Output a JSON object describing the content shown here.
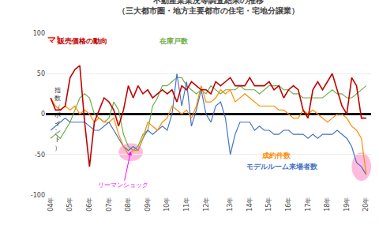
{
  "chart_data": {
    "type": "line",
    "title": "不動産業業況等調査結果の推移",
    "subtitle": "（三大都市圏・地方主要都市の住宅・宅地分譲業）",
    "y_label": "指数（ポイント）",
    "categories": [
      "04年",
      null,
      null,
      null,
      "05年",
      null,
      null,
      null,
      "06年",
      null,
      null,
      null,
      "07年",
      null,
      null,
      null,
      "08年",
      null,
      null,
      null,
      "09年",
      null,
      null,
      null,
      "10年",
      null,
      null,
      null,
      "11年",
      null,
      null,
      null,
      "12年",
      null,
      null,
      null,
      null,
      "13年",
      null,
      null,
      null,
      "14年",
      null,
      null,
      null,
      "15年",
      null,
      null,
      null,
      "16年",
      null,
      null,
      null,
      "17年",
      null,
      null,
      null,
      "18年",
      null,
      null,
      null,
      "19年",
      null,
      null,
      null,
      "20年"
    ],
    "series": [
      {
        "name": "在庫戸数",
        "color": "#70AD47",
        "values": [
          -30,
          -25,
          -30,
          -20,
          -10,
          5,
          20,
          25,
          20,
          0,
          -5,
          -10,
          -5,
          15,
          5,
          -25,
          -40,
          -45,
          -40,
          -25,
          -20,
          10,
          20,
          35,
          35,
          40,
          45,
          45,
          35,
          30,
          25,
          30,
          25,
          35,
          30,
          25,
          30,
          30,
          30,
          35,
          30,
          30,
          30,
          25,
          30,
          35,
          35,
          35,
          30,
          30,
          25,
          25,
          20,
          20,
          20,
          20,
          20,
          25,
          30,
          25,
          25,
          20,
          20,
          25,
          30,
          35
        ]
      },
      {
        "name": "モデルルーム来場者数",
        "color": "#4472C4",
        "values": [
          -20,
          -15,
          -10,
          -5,
          -10,
          -10,
          -10,
          -10,
          -15,
          -20,
          -20,
          -15,
          -10,
          -20,
          -30,
          -40,
          -45,
          -40,
          -45,
          -30,
          -20,
          -25,
          -20,
          -15,
          -20,
          0,
          50,
          10,
          40,
          -15,
          5,
          30,
          0,
          -10,
          10,
          15,
          -5,
          -50,
          -25,
          -10,
          -10,
          -10,
          -20,
          -15,
          -20,
          -20,
          -25,
          -25,
          -20,
          -20,
          -25,
          -25,
          -25,
          -30,
          -25,
          -30,
          -25,
          -25,
          -25,
          -20,
          -25,
          -30,
          -40,
          -60,
          -65,
          -75
        ]
      },
      {
        "name": "成約件数",
        "color": "#FF8C00",
        "values": [
          20,
          10,
          5,
          10,
          5,
          10,
          0,
          5,
          0,
          -10,
          -5,
          -10,
          -10,
          -5,
          -25,
          -40,
          -50,
          -45,
          -45,
          -30,
          -10,
          -15,
          -20,
          -10,
          -5,
          10,
          5,
          0,
          5,
          -5,
          10,
          35,
          15,
          15,
          20,
          30,
          25,
          30,
          15,
          20,
          25,
          20,
          15,
          10,
          10,
          10,
          10,
          5,
          5,
          0,
          -5,
          -5,
          5,
          0,
          5,
          0,
          -5,
          -10,
          -5,
          0,
          0,
          -5,
          -15,
          -20,
          -30,
          -75
        ]
      },
      {
        "name": "販売価格の動向",
        "color": "#C00000",
        "values": [
          20,
          5,
          5,
          10,
          45,
          55,
          60,
          -10,
          -65,
          -10,
          5,
          20,
          15,
          5,
          -15,
          5,
          35,
          20,
          35,
          25,
          30,
          20,
          25,
          30,
          25,
          30,
          15,
          35,
          30,
          40,
          35,
          30,
          30,
          25,
          40,
          35,
          40,
          45,
          35,
          35,
          35,
          45,
          35,
          35,
          35,
          40,
          30,
          35,
          20,
          30,
          35,
          30,
          5,
          -5,
          30,
          40,
          30,
          40,
          50,
          30,
          10,
          0,
          45,
          35,
          -5,
          -5
        ]
      }
    ],
    "ylim": [
      -100,
      100
    ],
    "yticks": [
      -100,
      -50,
      0,
      50,
      100
    ],
    "grid": true,
    "annotations": [
      {
        "text": "リーマンショック",
        "color": "#FF00FF"
      },
      {
        "text": "マ!",
        "color": "red"
      }
    ]
  }
}
